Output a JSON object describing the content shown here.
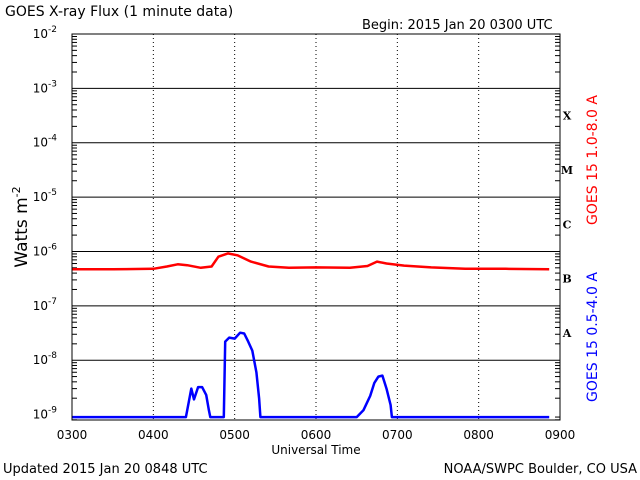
{
  "chart_data": {
    "type": "line",
    "title": "GOES X-ray Flux (1 minute data)",
    "begin_label": "Begin: 2015 Jan 20 0300 UTC",
    "updated_label": "Updated 2015 Jan 20 0848 UTC",
    "credit_label": "NOAA/SWPC Boulder, CO USA",
    "xlabel": "Universal Time",
    "ylabel_base": "Watts m",
    "ylabel_sup": "-2",
    "x_ticks": [
      "0300",
      "0400",
      "0500",
      "0600",
      "0700",
      "0800",
      "0900"
    ],
    "y_ticks": [
      {
        "base": "10",
        "exp": "-9",
        "exponent": -9
      },
      {
        "base": "10",
        "exp": "-8",
        "exponent": -8
      },
      {
        "base": "10",
        "exp": "-7",
        "exponent": -7
      },
      {
        "base": "10",
        "exp": "-6",
        "exponent": -6
      },
      {
        "base": "10",
        "exp": "-5",
        "exponent": -5
      },
      {
        "base": "10",
        "exp": "-4",
        "exponent": -4
      },
      {
        "base": "10",
        "exp": "-3",
        "exponent": -3
      },
      {
        "base": "10",
        "exp": "-2",
        "exponent": -2
      }
    ],
    "xlim_minutes_after_0300": [
      0,
      360
    ],
    "ylim_log10": [
      -9.1,
      -2
    ],
    "scale": "log",
    "flare_classes": [
      {
        "label": "X",
        "exponent": -4
      },
      {
        "label": "M",
        "exponent": -5
      },
      {
        "label": "C",
        "exponent": -6
      },
      {
        "label": "B",
        "exponent": -7
      },
      {
        "label": "A",
        "exponent": -8
      }
    ],
    "series": [
      {
        "name": "GOES 15 1.0-8.0 A",
        "color": "#ff0000",
        "points": [
          [
            0,
            4.7e-07
          ],
          [
            30,
            4.7e-07
          ],
          [
            60,
            4.8e-07
          ],
          [
            70,
            5.3e-07
          ],
          [
            78,
            5.8e-07
          ],
          [
            85,
            5.6e-07
          ],
          [
            95,
            5e-07
          ],
          [
            103,
            5.3e-07
          ],
          [
            108,
            8e-07
          ],
          [
            115,
            9.2e-07
          ],
          [
            122,
            8.5e-07
          ],
          [
            132,
            6.5e-07
          ],
          [
            145,
            5.3e-07
          ],
          [
            160,
            5e-07
          ],
          [
            180,
            5.1e-07
          ],
          [
            205,
            5e-07
          ],
          [
            218,
            5.4e-07
          ],
          [
            225,
            6.5e-07
          ],
          [
            232,
            6e-07
          ],
          [
            245,
            5.5e-07
          ],
          [
            265,
            5.1e-07
          ],
          [
            290,
            4.8e-07
          ],
          [
            320,
            4.8e-07
          ],
          [
            352,
            4.7e-07
          ]
        ]
      },
      {
        "name": "GOES 15 0.5-4.0 A",
        "color": "#0000ff",
        "points": [
          [
            0,
            9e-10
          ],
          [
            10,
            9e-10
          ],
          [
            20,
            9e-10
          ],
          [
            40,
            9e-10
          ],
          [
            70,
            9e-10
          ],
          [
            84,
            9e-10
          ],
          [
            85,
            1.2e-09
          ],
          [
            88,
            3e-09
          ],
          [
            90,
            1.9e-09
          ],
          [
            93,
            3.2e-09
          ],
          [
            96,
            3.2e-09
          ],
          [
            99,
            2.3e-09
          ],
          [
            101,
            1.2e-09
          ],
          [
            102,
            9e-10
          ],
          [
            112,
            9e-10
          ],
          [
            113,
            2.2e-08
          ],
          [
            116,
            2.6e-08
          ],
          [
            120,
            2.5e-08
          ],
          [
            124,
            3.2e-08
          ],
          [
            127,
            3.1e-08
          ],
          [
            130,
            2.2e-08
          ],
          [
            133,
            1.5e-08
          ],
          [
            136,
            6e-09
          ],
          [
            138,
            2e-09
          ],
          [
            139,
            9e-10
          ],
          [
            160,
            9e-10
          ],
          [
            180,
            9e-10
          ],
          [
            200,
            9e-10
          ],
          [
            210,
            9e-10
          ],
          [
            215,
            1.2e-09
          ],
          [
            220,
            2.2e-09
          ],
          [
            223,
            3.8e-09
          ],
          [
            226,
            5e-09
          ],
          [
            229,
            5.2e-09
          ],
          [
            232,
            3e-09
          ],
          [
            235,
            1.5e-09
          ],
          [
            236,
            9e-10
          ],
          [
            260,
            9e-10
          ],
          [
            300,
            9e-10
          ],
          [
            330,
            9e-10
          ],
          [
            352,
            9e-10
          ]
        ]
      }
    ]
  }
}
